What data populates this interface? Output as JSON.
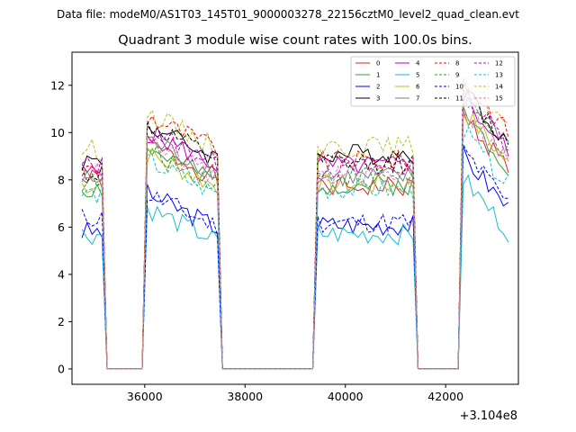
{
  "chart_data": {
    "type": "line",
    "suptitle": "Data file: modeM0/AS1T03_145T01_9000003278_22156cztM0_level2_quad_clean.evt",
    "title": "Quadrant 3 module wise count rates with 100.0s bins.",
    "xlabel": "",
    "ylabel": "",
    "x_offset_label": "+3.104e8",
    "xlim": [
      34550,
      43450
    ],
    "ylim": [
      -0.65,
      13.4
    ],
    "xticks": [
      36000,
      38000,
      40000,
      42000
    ],
    "xtick_labels": [
      "36000",
      "38000",
      "40000",
      "42000"
    ],
    "yticks": [
      0,
      2,
      4,
      6,
      8,
      10,
      12
    ],
    "ytick_labels": [
      "0",
      "2",
      "4",
      "6",
      "8",
      "10",
      "12"
    ],
    "segments": [
      {
        "x_start": 34750,
        "x_end": 35150
      },
      {
        "x_start": 36050,
        "x_end": 37450
      },
      {
        "x_start": 39450,
        "x_end": 41350
      },
      {
        "x_start": 42350,
        "x_end": 43250
      }
    ],
    "gap_value": 0,
    "legend": {
      "position": "top-right",
      "ncol": 4
    },
    "series": [
      {
        "name": "0",
        "color": "#d62728",
        "dash": "solid",
        "levels": [
          8.0,
          8.6,
          7.7,
          9.3
        ]
      },
      {
        "name": "1",
        "color": "#2ca02c",
        "dash": "solid",
        "levels": [
          7.6,
          8.4,
          7.8,
          9.4
        ]
      },
      {
        "name": "2",
        "color": "#0000ff",
        "dash": "solid",
        "levels": [
          5.8,
          6.5,
          6.1,
          7.6
        ]
      },
      {
        "name": "3",
        "color": "#000000",
        "dash": "solid",
        "levels": [
          8.8,
          9.4,
          9.1,
          10.4
        ]
      },
      {
        "name": "4",
        "color": "#bf00bf",
        "dash": "solid",
        "levels": [
          8.3,
          9.1,
          8.6,
          10.0
        ]
      },
      {
        "name": "5",
        "color": "#17becf",
        "dash": "solid",
        "levels": [
          5.7,
          5.9,
          5.7,
          6.6
        ]
      },
      {
        "name": "6",
        "color": "#bcbd22",
        "dash": "solid",
        "levels": [
          7.8,
          8.2,
          7.8,
          9.5
        ]
      },
      {
        "name": "7",
        "color": "#7f7f7f",
        "dash": "solid",
        "levels": [
          8.0,
          8.8,
          8.1,
          10.4
        ]
      },
      {
        "name": "8",
        "color": "#ff0000",
        "dash": "dashed",
        "levels": [
          8.4,
          9.8,
          8.8,
          10.8
        ]
      },
      {
        "name": "9",
        "color": "#2ca02c",
        "dash": "dashed",
        "levels": [
          7.9,
          8.3,
          8.2,
          9.9
        ]
      },
      {
        "name": "10",
        "color": "#0000ff",
        "dash": "dashed",
        "levels": [
          6.4,
          6.5,
          6.2,
          7.8
        ]
      },
      {
        "name": "11",
        "color": "#000000",
        "dash": "dashed",
        "levels": [
          8.3,
          9.4,
          8.7,
          10.3
        ]
      },
      {
        "name": "12",
        "color": "#bf00bf",
        "dash": "dashed",
        "levels": [
          8.6,
          9.2,
          8.5,
          10.3
        ]
      },
      {
        "name": "13",
        "color": "#17becf",
        "dash": "dashed",
        "levels": [
          7.4,
          7.9,
          7.6,
          8.6
        ]
      },
      {
        "name": "14",
        "color": "#bcbd22",
        "dash": "dashed",
        "levels": [
          9.3,
          9.9,
          9.4,
          11.0
        ]
      },
      {
        "name": "15",
        "color": "#e377c2",
        "dash": "dashed",
        "levels": [
          8.3,
          8.6,
          8.2,
          9.6
        ]
      }
    ]
  }
}
